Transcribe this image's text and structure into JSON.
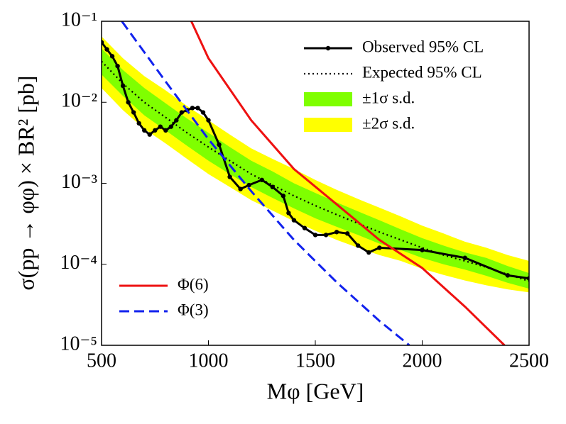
{
  "chart_data": {
    "type": "line",
    "xlabel": "Mφ [GeV]",
    "ylabel": "σ(pp → φφ) × BR² [pb]",
    "xlim": [
      500,
      2500
    ],
    "xticks": [
      500,
      1000,
      1500,
      2000,
      2500
    ],
    "ylim": [
      1e-05,
      0.1
    ],
    "yscale": "log",
    "yticks": [
      {
        "value": 1e-05,
        "label": "10⁻⁵"
      },
      {
        "value": 0.0001,
        "label": "10⁻⁴"
      },
      {
        "value": 0.001,
        "label": "10⁻³"
      },
      {
        "value": 0.01,
        "label": "10⁻²"
      },
      {
        "value": 0.1,
        "label": "10⁻¹"
      }
    ],
    "bands": [
      {
        "name": "±2σ s.d.",
        "color": "#ffff00",
        "legend": "upper right",
        "x": [
          500,
          600,
          700,
          800,
          900,
          1000,
          1100,
          1200,
          1300,
          1400,
          1500,
          1600,
          1700,
          1800,
          1900,
          2000,
          2100,
          2200,
          2300,
          2400,
          2500
        ],
        "upper": [
          0.065,
          0.035,
          0.021,
          0.014,
          0.009,
          0.006,
          0.004,
          0.0027,
          0.002,
          0.0015,
          0.0011,
          0.00083,
          0.00064,
          0.0005,
          0.00039,
          0.0003,
          0.00024,
          0.00019,
          0.00016,
          0.00013,
          0.00011
        ],
        "lower": [
          0.015,
          0.008,
          0.0047,
          0.0031,
          0.002,
          0.0013,
          0.0009,
          0.00062,
          0.00046,
          0.00034,
          0.00026,
          0.0002,
          0.00016,
          0.00013,
          0.00011,
          8.8e-05,
          7.4e-05,
          6.3e-05,
          5.5e-05,
          4.9e-05,
          4.5e-05
        ]
      },
      {
        "name": "±1σ s.d.",
        "color": "#7fff00",
        "legend": "upper right",
        "x": [
          500,
          600,
          700,
          800,
          900,
          1000,
          1100,
          1200,
          1300,
          1400,
          1500,
          1600,
          1700,
          1800,
          1900,
          2000,
          2100,
          2200,
          2300,
          2400,
          2500
        ],
        "upper": [
          0.046,
          0.025,
          0.015,
          0.0097,
          0.0063,
          0.0042,
          0.0028,
          0.0019,
          0.0014,
          0.001,
          0.00076,
          0.00058,
          0.00045,
          0.00035,
          0.00027,
          0.00021,
          0.00017,
          0.00014,
          0.00012,
          9.5e-05,
          7.8e-05
        ],
        "lower": [
          0.022,
          0.012,
          0.0069,
          0.0045,
          0.0029,
          0.0019,
          0.0013,
          0.0009,
          0.00066,
          0.00049,
          0.00037,
          0.00029,
          0.00023,
          0.00018,
          0.00015,
          0.00012,
          0.0001,
          8.6e-05,
          7.2e-05,
          5.9e-05,
          5e-05
        ]
      }
    ],
    "series": [
      {
        "name": "Observed 95% CL",
        "color": "#000000",
        "style": "solid",
        "markers": true,
        "legend": "upper right",
        "x": [
          500,
          525,
          550,
          575,
          600,
          625,
          650,
          675,
          700,
          725,
          750,
          775,
          800,
          825,
          850,
          875,
          900,
          925,
          950,
          975,
          1000,
          1050,
          1100,
          1150,
          1190,
          1250,
          1300,
          1350,
          1375,
          1400,
          1450,
          1500,
          1550,
          1600,
          1650,
          1700,
          1750,
          1800,
          2000,
          2200,
          2400,
          2500
        ],
        "values": [
          0.055,
          0.045,
          0.037,
          0.028,
          0.016,
          0.01,
          0.0075,
          0.0055,
          0.0045,
          0.004,
          0.0045,
          0.005,
          0.0045,
          0.005,
          0.006,
          0.0075,
          0.008,
          0.0085,
          0.0085,
          0.0075,
          0.006,
          0.003,
          0.0012,
          0.00085,
          0.00095,
          0.0011,
          0.0009,
          0.0007,
          0.00043,
          0.00035,
          0.00028,
          0.00023,
          0.00023,
          0.00025,
          0.00024,
          0.00017,
          0.00014,
          0.00016,
          0.00015,
          0.00012,
          7.3e-05,
          6.7e-05
        ]
      },
      {
        "name": "Expected 95% CL",
        "color": "#000000",
        "style": "dotted",
        "markers": false,
        "legend": "upper right",
        "x": [
          500,
          600,
          700,
          800,
          900,
          1000,
          1100,
          1200,
          1300,
          1400,
          1500,
          1600,
          1700,
          1800,
          1900,
          2000,
          2100,
          2200,
          2300,
          2400,
          2500
        ],
        "values": [
          0.032,
          0.017,
          0.01,
          0.0065,
          0.0042,
          0.0028,
          0.0019,
          0.0013,
          0.00095,
          0.0007,
          0.00053,
          0.00041,
          0.00032,
          0.00025,
          0.0002,
          0.00016,
          0.00013,
          0.00011,
          9.2e-05,
          7.5e-05,
          6.2e-05
        ]
      },
      {
        "name": "Φ(6)",
        "color": "#ee1111",
        "style": "solid",
        "markers": false,
        "legend": "lower left",
        "x": [
          920,
          1000,
          1200,
          1400,
          1600,
          1800,
          2000,
          2200,
          2385
        ],
        "values": [
          0.1,
          0.035,
          0.006,
          0.0015,
          0.00055,
          0.0002,
          9e-05,
          3e-05,
          1e-05
        ]
      },
      {
        "name": "Φ(3)",
        "color": "#1122ee",
        "style": "dashed",
        "markers": false,
        "legend": "lower left",
        "x": [
          595,
          800,
          1000,
          1200,
          1400,
          1600,
          1800,
          1940
        ],
        "values": [
          0.1,
          0.018,
          0.0035,
          0.0008,
          0.0002,
          6e-05,
          2e-05,
          1e-05
        ]
      }
    ]
  }
}
